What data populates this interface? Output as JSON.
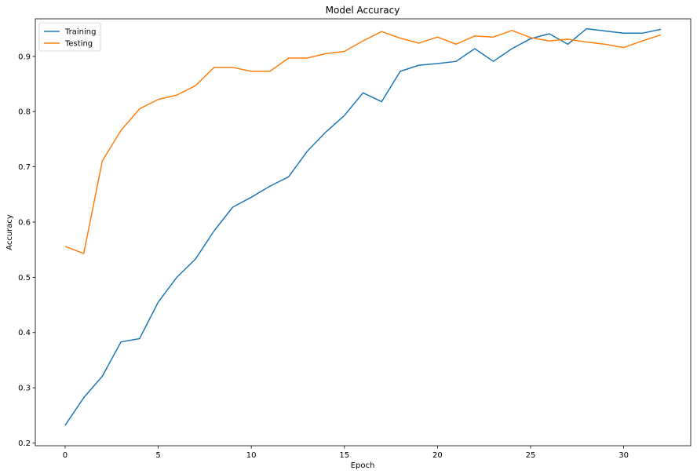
{
  "chart_data": {
    "type": "line",
    "title": "Model Accuracy",
    "xlabel": "Epoch",
    "ylabel": "Accuracy",
    "xlim": [
      -1.6,
      33.6
    ],
    "ylim": [
      0.195,
      0.968
    ],
    "xticks": [
      0,
      5,
      10,
      15,
      20,
      25,
      30
    ],
    "yticks": [
      0.2,
      0.3,
      0.4,
      0.5,
      0.6,
      0.7,
      0.8,
      0.9
    ],
    "grid": false,
    "legend_position": "top-left",
    "x": [
      0,
      1,
      2,
      3,
      4,
      5,
      6,
      7,
      8,
      9,
      10,
      11,
      12,
      13,
      14,
      15,
      16,
      17,
      18,
      19,
      20,
      21,
      22,
      23,
      24,
      25,
      26,
      27,
      28,
      29,
      30,
      31,
      32
    ],
    "series": [
      {
        "name": "Training",
        "color": "#1f77b4",
        "values": [
          0.232,
          0.282,
          0.321,
          0.383,
          0.389,
          0.455,
          0.5,
          0.533,
          0.584,
          0.627,
          0.645,
          0.665,
          0.682,
          0.728,
          0.763,
          0.793,
          0.834,
          0.818,
          0.873,
          0.884,
          0.887,
          0.891,
          0.914,
          0.891,
          0.914,
          0.932,
          0.941,
          0.922,
          0.95,
          0.946,
          0.942,
          0.942,
          0.949
        ]
      },
      {
        "name": "Testing",
        "color": "#ff7f0e",
        "values": [
          0.556,
          0.543,
          0.711,
          0.766,
          0.805,
          0.822,
          0.83,
          0.847,
          0.88,
          0.88,
          0.873,
          0.873,
          0.897,
          0.897,
          0.905,
          0.909,
          0.928,
          0.945,
          0.933,
          0.924,
          0.935,
          0.922,
          0.937,
          0.935,
          0.947,
          0.934,
          0.928,
          0.931,
          0.926,
          0.922,
          0.916,
          0.928,
          0.939
        ]
      }
    ]
  }
}
